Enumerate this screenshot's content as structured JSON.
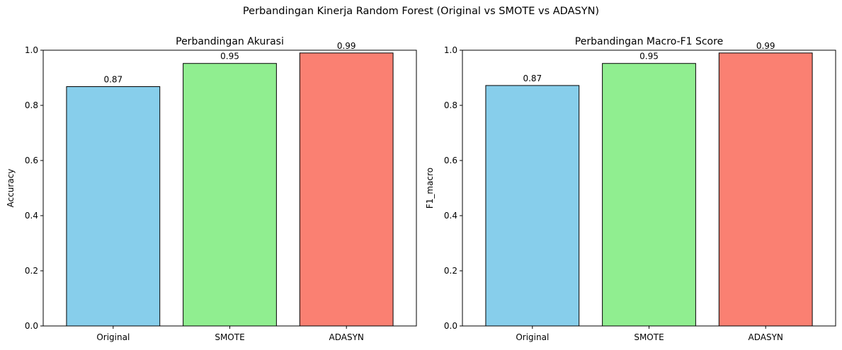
{
  "suptitle": "Perbandingan Kinerja Random Forest (Original vs SMOTE vs ADASYN)",
  "chart_data": [
    {
      "type": "bar",
      "title": "Perbandingan Akurasi",
      "xlabel": "",
      "ylabel": "Accuracy",
      "categories": [
        "Original",
        "SMOTE",
        "ADASYN"
      ],
      "values": [
        0.868,
        0.952,
        0.99
      ],
      "value_labels": [
        "0.87",
        "0.95",
        "0.99"
      ],
      "colors": [
        "#87ceeb",
        "#90ee90",
        "#fa8072"
      ],
      "ylim": [
        0,
        1.0
      ],
      "yticks": [
        "0.0",
        "0.2",
        "0.4",
        "0.6",
        "0.8",
        "1.0"
      ],
      "grid": false,
      "legend": "none"
    },
    {
      "type": "bar",
      "title": "Perbandingan Macro-F1 Score",
      "xlabel": "",
      "ylabel": "F1_macro",
      "categories": [
        "Original",
        "SMOTE",
        "ADASYN"
      ],
      "values": [
        0.872,
        0.952,
        0.99
      ],
      "value_labels": [
        "0.87",
        "0.95",
        "0.99"
      ],
      "colors": [
        "#87ceeb",
        "#90ee90",
        "#fa8072"
      ],
      "ylim": [
        0,
        1.0
      ],
      "yticks": [
        "0.0",
        "0.2",
        "0.4",
        "0.6",
        "0.8",
        "1.0"
      ],
      "grid": false,
      "legend": "none"
    }
  ]
}
